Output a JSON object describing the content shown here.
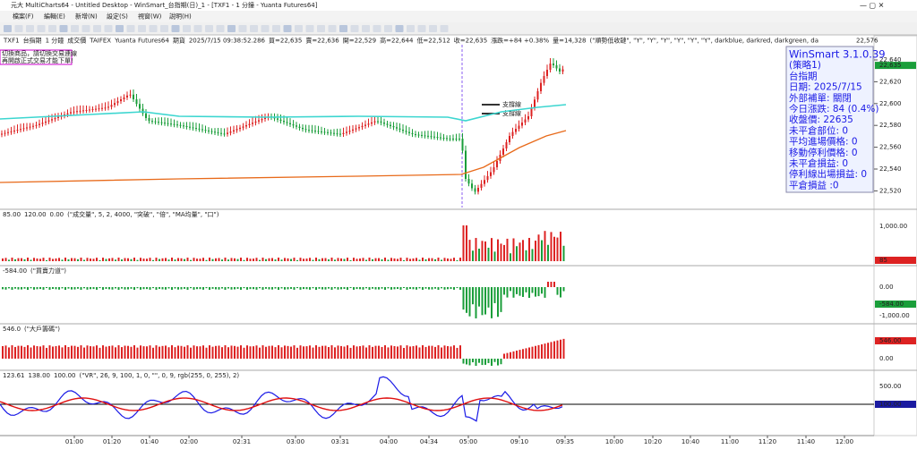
{
  "title_bar": {
    "title": "元大 MultiCharts64 - Untitled Desktop - WinSmart_台指期(日)_1 - [TXF1 - 1 分鐘 - Yuanta Futures64]"
  },
  "menu": [
    "檔案(F)",
    "編輯(E)",
    "新增(N)",
    "設定(S)",
    "視窗(W)",
    "說明(H)"
  ],
  "chart_header": {
    "symbol": "TXF1",
    "name": "台指期",
    "interval": "1 分鐘",
    "field": "成交價",
    "exchange": "TAIFEX",
    "feed": "Yuanta Futures64",
    "market": "期貨",
    "datetime": "2025/7/15 09:38:52.286",
    "bid": "買=22,635",
    "ask": "賣=22,636",
    "open": "開=22,529",
    "high": "高=22,644",
    "low": "低=22,512",
    "close": "收=22,635",
    "change": "漲跌=+84 +0.38%",
    "volume": "量=14,328",
    "study": "(\"順勢低收鏈\", \"Y\", \"Y\", \"Y\", \"Y\", \"Y\", \"Y\", darkblue, darkred, darkgreen, da",
    "last_tag": "22,576"
  },
  "notes": [
    "切換商品，請切換交易連線",
    "再開啟正式交易才能下單!"
  ],
  "support_labels": [
    "支撐線",
    "支撐線"
  ],
  "price_axis": {
    "ticks": [
      {
        "value": 22640,
        "label": "22,640"
      },
      {
        "value": 22620,
        "label": "22,620"
      },
      {
        "value": 22600,
        "label": "22,600"
      },
      {
        "value": 22580,
        "label": "22,580"
      },
      {
        "value": 22560,
        "label": "22,560"
      },
      {
        "value": 22540,
        "label": "22,540"
      },
      {
        "value": 22520,
        "label": "22,520"
      }
    ],
    "current": {
      "value": 22635,
      "label": "22,635"
    }
  },
  "info_box": [
    "WinSmart 3.1.0.39",
    "(策略1)",
    "台指期",
    "日期: 2025/7/15",
    "外部補單: 關閉",
    "今日漲跌: 84 (0.4%)",
    "收盤價: 22635",
    "未平倉部位: 0",
    "平均進場價格: 0",
    "移動停利價格: 0",
    "未平倉損益: 0",
    "停利線出場損益: 0",
    "平倉損益 :0"
  ],
  "panels": [
    {
      "header": [
        "85.00",
        "120.00",
        "0.00",
        "(\"成交量\", 5, 2, 4000, \"突破\", \"倍\", \"MA均量\", \"口\")"
      ],
      "axis": [
        "1,000.00"
      ],
      "tag": "85"
    },
    {
      "header": [
        "-584.00",
        "(\"買賣力道\")"
      ],
      "axis": [
        "0.00",
        "-1,000.00"
      ],
      "tag": "-584.00"
    },
    {
      "header": [
        "546.0",
        "(\"大戶籌碼\")"
      ],
      "axis": [
        "0.00"
      ],
      "tag": "546.00"
    },
    {
      "header": [
        "123.61",
        "138.00",
        "100.00",
        "(\"VR\", 26, 9, 100, 1, 0, \"\", 0, 9, rgb(255, 0, 255), 2)"
      ],
      "axis": [
        "500.00"
      ],
      "tag": "100.00"
    }
  ],
  "time_axis": [
    "01:00",
    "01:20",
    "01:40",
    "02:00",
    "02:31",
    "03:00",
    "03:31",
    "04:00",
    "04:34",
    "05:00",
    "09:10",
    "09:35",
    "10:00",
    "10:20",
    "10:40",
    "11:00",
    "11:20",
    "11:40",
    "12:00"
  ]
}
